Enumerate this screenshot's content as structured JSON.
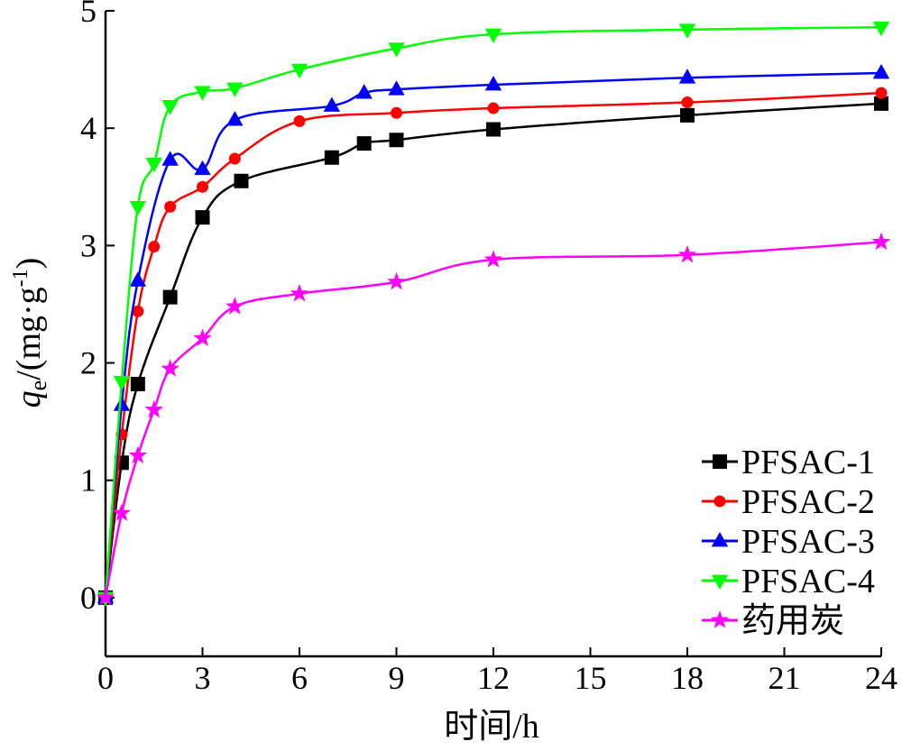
{
  "chart_data": {
    "type": "line",
    "xlabel": "时间/h",
    "ylabel": {
      "italic": "q",
      "sub": "e",
      "rest": "/(mg·g",
      "sup": "-1",
      "close": ")"
    },
    "xlim": [
      0,
      24
    ],
    "ylim": [
      -0.5,
      5
    ],
    "xticks": [
      0,
      3,
      6,
      9,
      12,
      15,
      18,
      21,
      24
    ],
    "yticks": [
      0,
      1,
      2,
      3,
      4,
      5
    ],
    "legend_position": "bottom-right",
    "series": [
      {
        "name": "PFSAC-1",
        "color": "#000000",
        "marker": "square",
        "x": [
          0,
          0.5,
          1,
          2,
          3,
          4.2,
          7,
          8,
          9,
          12,
          18,
          24
        ],
        "y": [
          0.0,
          1.15,
          1.82,
          2.56,
          3.24,
          3.55,
          3.75,
          3.87,
          3.9,
          3.99,
          4.11,
          4.21
        ]
      },
      {
        "name": "PFSAC-2",
        "color": "#ff0000",
        "marker": "circle",
        "x": [
          0,
          0.5,
          1,
          1.5,
          2,
          3,
          4,
          6,
          9,
          12,
          18,
          24
        ],
        "y": [
          0.0,
          1.39,
          2.44,
          2.99,
          3.33,
          3.5,
          3.74,
          4.06,
          4.13,
          4.17,
          4.22,
          4.3
        ]
      },
      {
        "name": "PFSAC-3",
        "color": "#0000ff",
        "marker": "triangle-up",
        "x": [
          0,
          0.5,
          1,
          2,
          3,
          4,
          7,
          8,
          9,
          12,
          18,
          24
        ],
        "y": [
          0.0,
          1.64,
          2.7,
          3.73,
          3.65,
          4.07,
          4.19,
          4.3,
          4.33,
          4.37,
          4.43,
          4.47
        ]
      },
      {
        "name": "PFSAC-4",
        "color": "#00ff00",
        "marker": "triangle-down",
        "x": [
          0,
          0.5,
          1,
          1.5,
          2,
          3,
          4,
          6,
          9,
          12,
          18,
          24
        ],
        "y": [
          0.0,
          1.84,
          3.33,
          3.7,
          4.19,
          4.31,
          4.34,
          4.5,
          4.68,
          4.8,
          4.84,
          4.86
        ]
      },
      {
        "name": "药用炭",
        "color": "#ff00ff",
        "marker": "star",
        "x": [
          0,
          0.5,
          1,
          1.5,
          2,
          3,
          4,
          6,
          9,
          12,
          18,
          24
        ],
        "y": [
          0.0,
          0.72,
          1.21,
          1.6,
          1.95,
          2.21,
          2.48,
          2.59,
          2.69,
          2.88,
          2.92,
          3.03
        ]
      }
    ]
  }
}
